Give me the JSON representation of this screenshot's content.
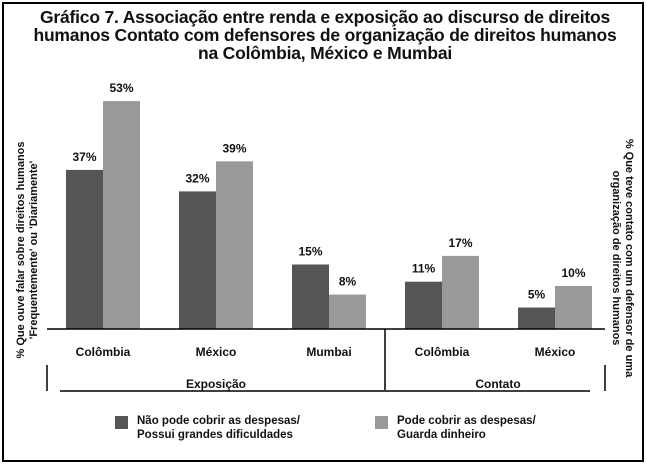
{
  "title_lines": [
    "Gráfico 7. Associação entre renda e exposição ao discurso de direitos",
    "humanos Contato com defensores de organização de direitos humanos",
    "na Colômbia, México e Mumbai"
  ],
  "chart_data": {
    "type": "bar",
    "title": "Gráfico 7. Associação entre renda e exposição ao discurso de direitos humanos Contato com defensores de organização de direitos humanos na Colômbia, México e Mumbai",
    "groups": [
      {
        "label": "Exposição",
        "categories": [
          "Colômbia",
          "México",
          "Mumbai"
        ]
      },
      {
        "label": "Contato",
        "categories": [
          "Colômbia",
          "México"
        ]
      }
    ],
    "categories": [
      "Colômbia",
      "México",
      "Mumbai",
      "Colômbia",
      "México"
    ],
    "series": [
      {
        "name": "Não pode cobrir as despesas/ Possui grandes dificuldades",
        "color": "#555555",
        "values": [
          37,
          32,
          15,
          11,
          5
        ],
        "labels": [
          "37%",
          "32%",
          "15%",
          "11%",
          "5%"
        ]
      },
      {
        "name": "Pode cobrir as despesas/ Guarda dinheiro",
        "color": "#999999",
        "values": [
          53,
          39,
          8,
          17,
          10
        ],
        "labels": [
          "53%",
          "39%",
          "8%",
          "17%",
          "10%"
        ]
      }
    ],
    "ylabel_left": [
      "% Que ouve falar sobre direitos humanos",
      "'Frequentemente' ou 'Diariamente'"
    ],
    "ylabel_right": [
      "% Que teve contato com um defensor de uma",
      "organização de direitos humanos"
    ],
    "ylim": [
      0,
      60
    ],
    "legend": [
      {
        "lines": [
          "Não pode cobrir as despesas/",
          "Possui grandes dificuldades"
        ],
        "color": "#555555"
      },
      {
        "lines": [
          "Pode cobrir as despesas/",
          "Guarda dinheiro"
        ],
        "color": "#999999"
      }
    ]
  }
}
